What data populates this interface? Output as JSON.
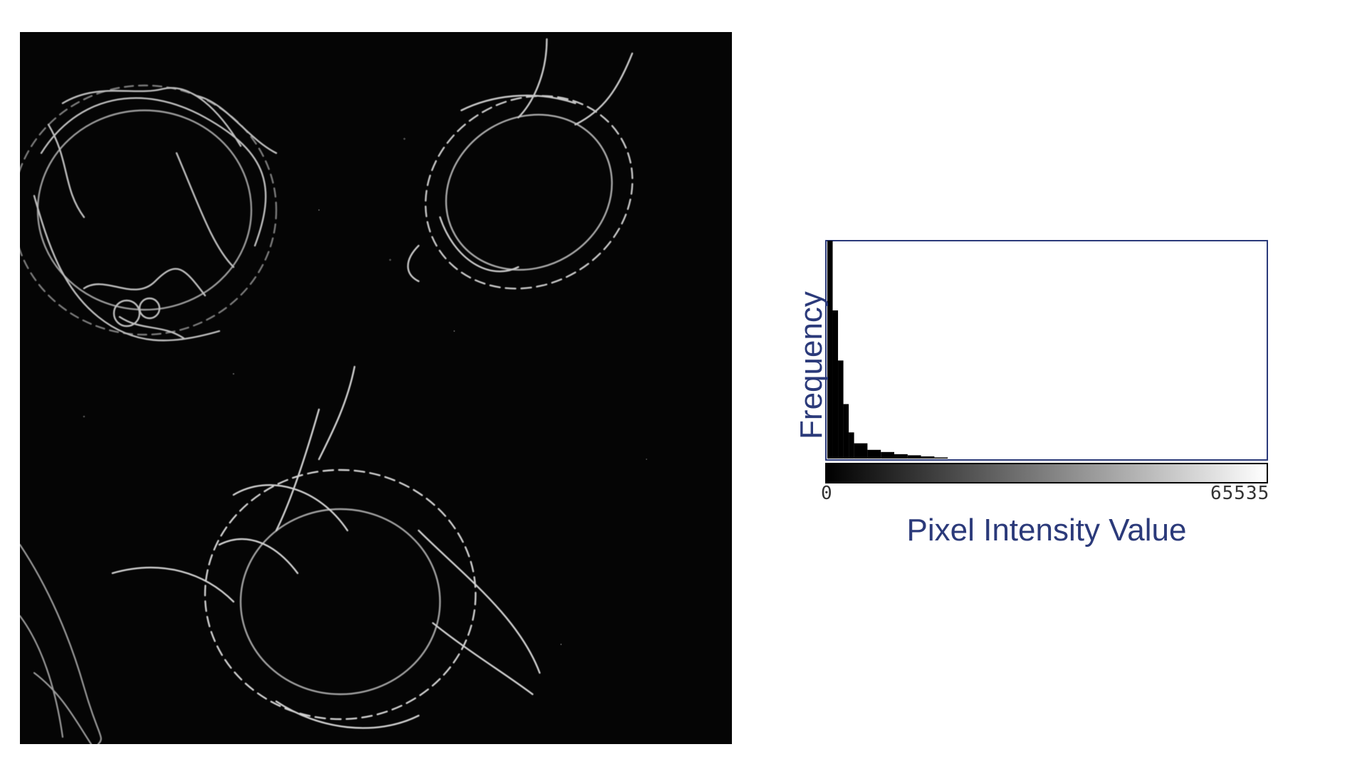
{
  "chart_data": {
    "type": "bar",
    "xlabel": "Pixel Intensity Value",
    "ylabel": "Frequency",
    "x_tick_labels": [
      "0",
      "65535"
    ],
    "xlim": [
      0,
      65535
    ],
    "x": [
      0,
      800,
      1600,
      2400,
      3200,
      4000,
      6000,
      8000,
      10000,
      12000,
      14000,
      16000
    ],
    "values": [
      100,
      68,
      45,
      25,
      12,
      7,
      4,
      3,
      2,
      1.5,
      1,
      0.5
    ],
    "colors": {
      "bars": "#000000",
      "frame": "#2b3a7a",
      "labels": "#2b3a7a"
    }
  }
}
